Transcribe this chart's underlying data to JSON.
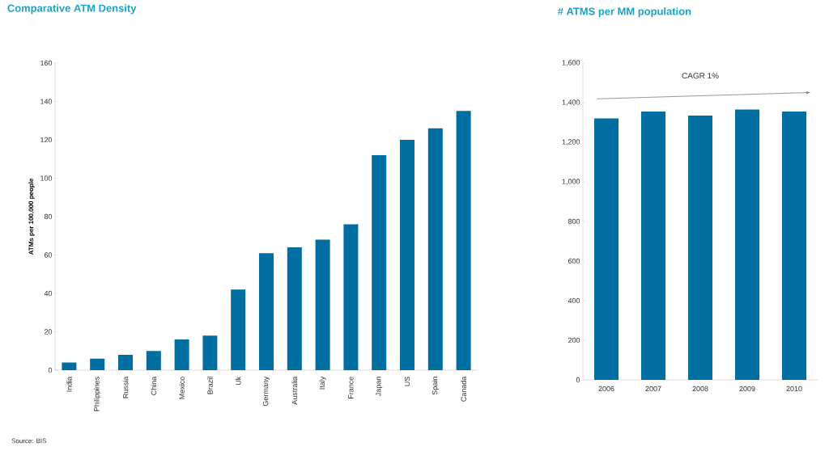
{
  "chart_data": [
    {
      "type": "bar",
      "title": "Comparative ATM Density",
      "ylabel": "ATMs per 100,000 people",
      "categories": [
        "India",
        "Philippines",
        "Russia",
        "China",
        "Mexico",
        "Brazil",
        "Uk",
        "Germany",
        "Australia",
        "Italy",
        "France",
        "Japan",
        "US",
        "Spain",
        "Canada"
      ],
      "values": [
        4,
        6,
        8,
        10,
        16,
        18,
        42,
        61,
        64,
        68,
        76,
        112,
        120,
        126,
        135
      ],
      "color": "#006ea1",
      "ylim": [
        0,
        160
      ],
      "yticks": [
        0,
        20,
        40,
        60,
        80,
        100,
        120,
        140,
        160
      ],
      "annotations": [
        "Source: BIS"
      ]
    },
    {
      "type": "bar",
      "title": "# ATMS per MM population",
      "categories": [
        "2006",
        "2007",
        "2008",
        "2009",
        "2010"
      ],
      "values": [
        1320,
        1355,
        1335,
        1365,
        1355
      ],
      "color": "#006ea1",
      "ylim": [
        0,
        1600
      ],
      "yticks": [
        0,
        200,
        400,
        600,
        800,
        {
          "value": 1000,
          "label": "1,000"
        },
        {
          "value": 1200,
          "label": "1,200"
        },
        {
          "value": 1400,
          "label": "1,400"
        },
        {
          "value": 1600,
          "label": "1,600"
        }
      ],
      "annotations": [
        "CAGR 1%"
      ]
    }
  ]
}
